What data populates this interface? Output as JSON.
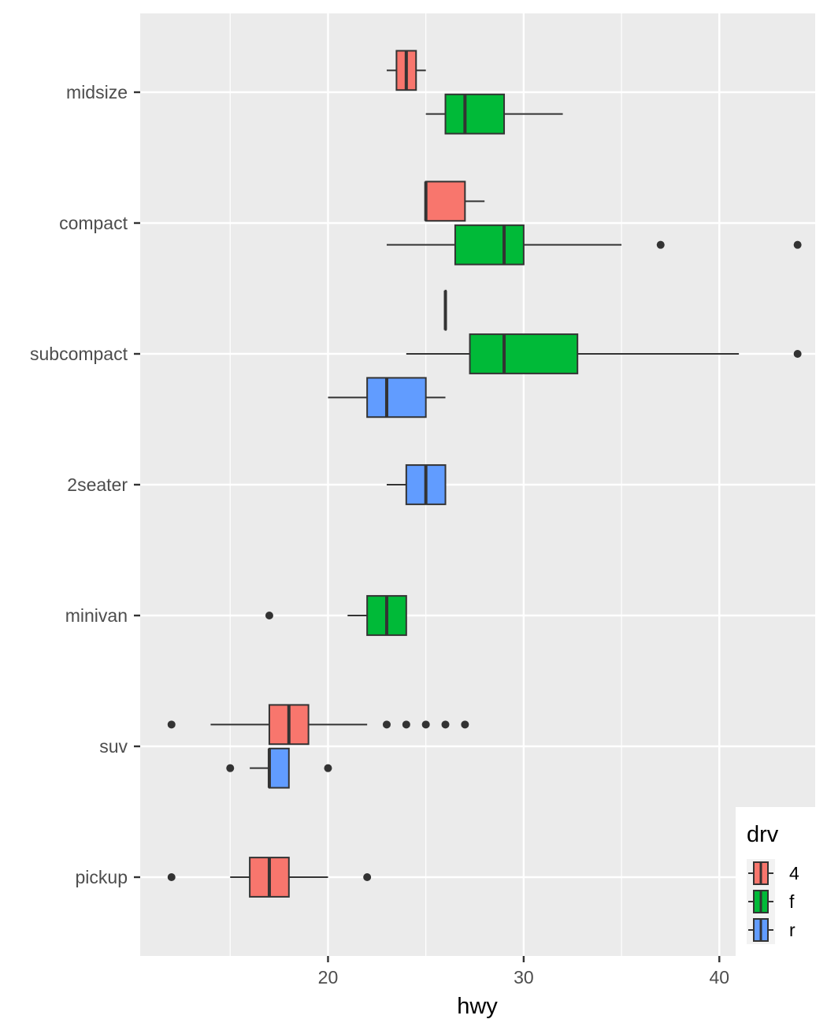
{
  "chart_data": {
    "type": "boxplot",
    "orientation": "horizontal",
    "title": "",
    "xlabel": "hwy",
    "ylabel": "",
    "xlim": [
      10.4,
      44.9
    ],
    "x_ticks": [
      20,
      30,
      40
    ],
    "grid": true,
    "categories": [
      "midsize",
      "compact",
      "subcompact",
      "2seater",
      "minivan",
      "suv",
      "pickup"
    ],
    "legend": {
      "title": "drv",
      "position": "bottom-right",
      "entries": [
        {
          "key": "4",
          "color": "#F8766D"
        },
        {
          "key": "f",
          "color": "#00BA38"
        },
        {
          "key": "r",
          "color": "#619CFF"
        }
      ]
    },
    "series": [
      {
        "name": "4",
        "color": "#F8766D",
        "boxes": [
          {
            "category": "midsize",
            "lower_whisker": 23,
            "q1": 23.5,
            "median": 24,
            "q3": 24.5,
            "upper_whisker": 25,
            "outliers": []
          },
          {
            "category": "compact",
            "lower_whisker": 25,
            "q1": 25,
            "median": 25,
            "q3": 27,
            "upper_whisker": 28,
            "outliers": []
          },
          {
            "category": "subcompact",
            "lower_whisker": 26,
            "q1": 26,
            "median": 26,
            "q3": 26,
            "upper_whisker": 26,
            "outliers": []
          },
          {
            "category": "suv",
            "lower_whisker": 14,
            "q1": 17,
            "median": 18,
            "q3": 19,
            "upper_whisker": 22,
            "outliers": [
              12,
              23,
              24,
              25,
              26,
              27
            ]
          },
          {
            "category": "pickup",
            "lower_whisker": 15,
            "q1": 16,
            "median": 17,
            "q3": 18,
            "upper_whisker": 20,
            "outliers": [
              12,
              22
            ]
          }
        ]
      },
      {
        "name": "f",
        "color": "#00BA38",
        "boxes": [
          {
            "category": "midsize",
            "lower_whisker": 25,
            "q1": 26,
            "median": 27,
            "q3": 29,
            "upper_whisker": 32,
            "outliers": []
          },
          {
            "category": "compact",
            "lower_whisker": 23,
            "q1": 26.5,
            "median": 29,
            "q3": 30,
            "upper_whisker": 35,
            "outliers": [
              37,
              44
            ]
          },
          {
            "category": "subcompact",
            "lower_whisker": 24,
            "q1": 27.25,
            "median": 29,
            "q3": 32.75,
            "upper_whisker": 41,
            "outliers": [
              44
            ]
          },
          {
            "category": "minivan",
            "lower_whisker": 21,
            "q1": 22,
            "median": 23,
            "q3": 24,
            "upper_whisker": 24,
            "outliers": [
              17
            ]
          }
        ]
      },
      {
        "name": "r",
        "color": "#619CFF",
        "boxes": [
          {
            "category": "subcompact",
            "lower_whisker": 20,
            "q1": 22,
            "median": 23,
            "q3": 25,
            "upper_whisker": 26,
            "outliers": []
          },
          {
            "category": "2seater",
            "lower_whisker": 23,
            "q1": 24,
            "median": 25,
            "q3": 26,
            "upper_whisker": 26,
            "outliers": []
          },
          {
            "category": "suv",
            "lower_whisker": 16,
            "q1": 17,
            "median": 17,
            "q3": 18,
            "upper_whisker": 18,
            "outliers": [
              15,
              20
            ]
          }
        ]
      }
    ]
  }
}
